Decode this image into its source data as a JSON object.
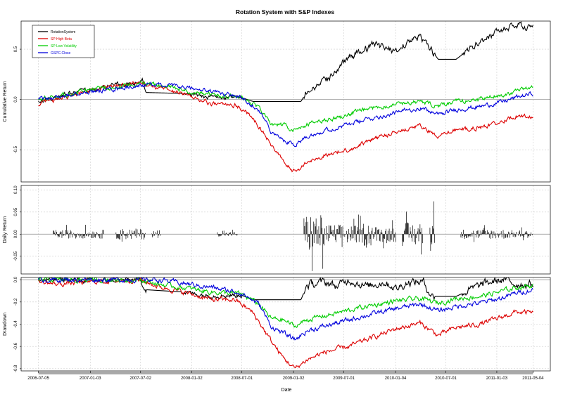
{
  "chart_data": {
    "type": "line",
    "title": "Rotation System with S&P Indexes",
    "xlabel": "Date",
    "x_tick_labels": [
      "2006-07-05",
      "2007-01-03",
      "2007-07-02",
      "2008-01-02",
      "2008-07-01",
      "2009-01-02",
      "2009-07-01",
      "2010-01-04",
      "2010-07-01",
      "2011-01-03",
      "2011-05-04"
    ],
    "x_tick_pos": [
      0,
      0.0869,
      0.1712,
      0.2568,
      0.341,
      0.4276,
      0.5119,
      0.5985,
      0.6828,
      0.7682,
      0.8289
    ],
    "x_range": [
      0,
      0.8289
    ],
    "colors": {
      "RotationSystem": "#000000",
      "SP High Beta": "#dd0000",
      "SP Low Volatility": "#00cc00",
      "GSPC.Close": "#0000dd"
    },
    "legend": [
      "RotationSystem",
      "SP High Beta",
      "SP Low Volatility",
      "GSPC.Close"
    ],
    "legend_position": "top-left",
    "panels": [
      {
        "ylabel": "Cumulative Return",
        "ylim": [
          -0.82,
          0.78
        ],
        "y_ticks": [
          0.5,
          0.0,
          -0.5
        ],
        "y_tick_labels": [
          "0.5",
          "0.0",
          "-0.5"
        ],
        "series": [
          {
            "name": "RotationSystem",
            "color": "#000000",
            "points": [
              [
                0,
                -0.02
              ],
              [
                0.02,
                0.0
              ],
              [
                0.05,
                0.06
              ],
              [
                0.08,
                0.09
              ],
              [
                0.1,
                0.11
              ],
              [
                0.12,
                0.13
              ],
              [
                0.14,
                0.16
              ],
              [
                0.16,
                0.17
              ],
              [
                0.175,
                0.19
              ],
              [
                0.18,
                0.07
              ],
              [
                0.24,
                0.06
              ],
              [
                0.28,
                0.02
              ],
              [
                0.34,
                0.02
              ],
              [
                0.36,
                -0.02
              ],
              [
                0.44,
                -0.02
              ],
              [
                0.45,
                0.08
              ],
              [
                0.48,
                0.18
              ],
              [
                0.5,
                0.3
              ],
              [
                0.52,
                0.42
              ],
              [
                0.55,
                0.5
              ],
              [
                0.56,
                0.55
              ],
              [
                0.6,
                0.48
              ],
              [
                0.62,
                0.58
              ],
              [
                0.64,
                0.62
              ],
              [
                0.65,
                0.56
              ],
              [
                0.67,
                0.4
              ],
              [
                0.7,
                0.4
              ],
              [
                0.74,
                0.58
              ],
              [
                0.78,
                0.7
              ],
              [
                0.8,
                0.74
              ],
              [
                0.829,
                0.71
              ]
            ]
          },
          {
            "name": "SP High Beta",
            "color": "#dd0000",
            "points": [
              [
                0,
                -0.05
              ],
              [
                0.03,
                0.0
              ],
              [
                0.08,
                0.08
              ],
              [
                0.12,
                0.13
              ],
              [
                0.17,
                0.17
              ],
              [
                0.2,
                0.12
              ],
              [
                0.25,
                0.05
              ],
              [
                0.29,
                -0.05
              ],
              [
                0.33,
                -0.05
              ],
              [
                0.36,
                -0.18
              ],
              [
                0.39,
                -0.45
              ],
              [
                0.41,
                -0.62
              ],
              [
                0.43,
                -0.72
              ],
              [
                0.45,
                -0.63
              ],
              [
                0.48,
                -0.55
              ],
              [
                0.52,
                -0.5
              ],
              [
                0.55,
                -0.42
              ],
              [
                0.58,
                -0.36
              ],
              [
                0.6,
                -0.32
              ],
              [
                0.64,
                -0.26
              ],
              [
                0.67,
                -0.38
              ],
              [
                0.7,
                -0.3
              ],
              [
                0.74,
                -0.28
              ],
              [
                0.78,
                -0.21
              ],
              [
                0.8,
                -0.16
              ],
              [
                0.829,
                -0.18
              ]
            ]
          },
          {
            "name": "SP Low Volatility",
            "color": "#00cc00",
            "points": [
              [
                0,
                0.0
              ],
              [
                0.04,
                0.04
              ],
              [
                0.08,
                0.09
              ],
              [
                0.12,
                0.12
              ],
              [
                0.17,
                0.16
              ],
              [
                0.2,
                0.14
              ],
              [
                0.24,
                0.1
              ],
              [
                0.29,
                0.05
              ],
              [
                0.34,
                0.03
              ],
              [
                0.37,
                -0.08
              ],
              [
                0.39,
                -0.25
              ],
              [
                0.41,
                -0.25
              ],
              [
                0.43,
                -0.32
              ],
              [
                0.45,
                -0.25
              ],
              [
                0.5,
                -0.18
              ],
              [
                0.55,
                -0.1
              ],
              [
                0.6,
                -0.04
              ],
              [
                0.64,
                -0.02
              ],
              [
                0.67,
                -0.07
              ],
              [
                0.7,
                -0.02
              ],
              [
                0.74,
                0.0
              ],
              [
                0.78,
                0.05
              ],
              [
                0.8,
                0.08
              ],
              [
                0.829,
                0.12
              ]
            ]
          },
          {
            "name": "GSPC.Close",
            "color": "#0000dd",
            "points": [
              [
                0,
                0.0
              ],
              [
                0.04,
                0.03
              ],
              [
                0.08,
                0.07
              ],
              [
                0.12,
                0.1
              ],
              [
                0.17,
                0.14
              ],
              [
                0.2,
                0.15
              ],
              [
                0.24,
                0.12
              ],
              [
                0.29,
                0.08
              ],
              [
                0.34,
                0.02
              ],
              [
                0.37,
                -0.1
              ],
              [
                0.39,
                -0.33
              ],
              [
                0.41,
                -0.4
              ],
              [
                0.43,
                -0.45
              ],
              [
                0.45,
                -0.36
              ],
              [
                0.5,
                -0.28
              ],
              [
                0.55,
                -0.2
              ],
              [
                0.6,
                -0.13
              ],
              [
                0.64,
                -0.08
              ],
              [
                0.67,
                -0.15
              ],
              [
                0.7,
                -0.1
              ],
              [
                0.74,
                -0.07
              ],
              [
                0.78,
                -0.02
              ],
              [
                0.8,
                0.02
              ],
              [
                0.829,
                0.06
              ]
            ]
          }
        ]
      },
      {
        "ylabel": "Daily Return",
        "ylim": [
          -0.09,
          0.11
        ],
        "y_ticks": [
          0.1,
          0.05,
          0.0,
          -0.05
        ],
        "y_tick_labels": [
          "0.10",
          "0.05",
          "0.00",
          "-0.05"
        ],
        "bar_segments": [
          [
            0.025,
            0.11,
            0.022
          ],
          [
            0.13,
            0.18,
            0.028
          ],
          [
            0.19,
            0.205,
            0.02
          ],
          [
            0.3,
            0.335,
            0.012
          ],
          [
            0.445,
            0.48,
            0.1
          ],
          [
            0.48,
            0.52,
            0.05
          ],
          [
            0.52,
            0.545,
            0.045
          ],
          [
            0.545,
            0.565,
            0.06
          ],
          [
            0.565,
            0.6,
            0.04
          ],
          [
            0.61,
            0.645,
            0.06
          ],
          [
            0.655,
            0.665,
            0.085
          ],
          [
            0.708,
            0.79,
            0.025
          ],
          [
            0.79,
            0.829,
            0.02
          ]
        ]
      },
      {
        "ylabel": "Drawdown",
        "ylim": [
          -0.82,
          0.02
        ],
        "y_ticks": [
          0.0,
          -0.2,
          -0.4,
          -0.6,
          -0.8
        ],
        "y_tick_labels": [
          "0.0",
          "-0.2",
          "-0.4",
          "-0.6",
          "-0.8"
        ],
        "series": [
          {
            "name": "RotationSystem",
            "color": "#000000",
            "points": [
              [
                0,
                0.0
              ],
              [
                0.05,
                0.0
              ],
              [
                0.1,
                -0.01
              ],
              [
                0.17,
                0.0
              ],
              [
                0.18,
                -0.09
              ],
              [
                0.24,
                -0.11
              ],
              [
                0.28,
                -0.14
              ],
              [
                0.34,
                -0.14
              ],
              [
                0.36,
                -0.18
              ],
              [
                0.44,
                -0.18
              ],
              [
                0.45,
                -0.05
              ],
              [
                0.48,
                -0.02
              ],
              [
                0.5,
                -0.06
              ],
              [
                0.52,
                0.0
              ],
              [
                0.55,
                -0.06
              ],
              [
                0.58,
                -0.02
              ],
              [
                0.6,
                -0.08
              ],
              [
                0.62,
                -0.02
              ],
              [
                0.645,
                -0.02
              ],
              [
                0.66,
                -0.15
              ],
              [
                0.7,
                -0.15
              ],
              [
                0.74,
                -0.05
              ],
              [
                0.76,
                -0.02
              ],
              [
                0.78,
                0.0
              ],
              [
                0.8,
                -0.04
              ],
              [
                0.829,
                -0.04
              ]
            ]
          },
          {
            "name": "SP High Beta",
            "color": "#dd0000",
            "points": [
              [
                0,
                -0.02
              ],
              [
                0.03,
                -0.04
              ],
              [
                0.08,
                -0.02
              ],
              [
                0.17,
                0.0
              ],
              [
                0.2,
                -0.06
              ],
              [
                0.25,
                -0.12
              ],
              [
                0.29,
                -0.18
              ],
              [
                0.33,
                -0.18
              ],
              [
                0.36,
                -0.3
              ],
              [
                0.39,
                -0.55
              ],
              [
                0.41,
                -0.7
              ],
              [
                0.43,
                -0.8
              ],
              [
                0.45,
                -0.72
              ],
              [
                0.48,
                -0.65
              ],
              [
                0.52,
                -0.6
              ],
              [
                0.55,
                -0.54
              ],
              [
                0.58,
                -0.48
              ],
              [
                0.6,
                -0.44
              ],
              [
                0.64,
                -0.39
              ],
              [
                0.67,
                -0.5
              ],
              [
                0.7,
                -0.43
              ],
              [
                0.74,
                -0.4
              ],
              [
                0.78,
                -0.33
              ],
              [
                0.8,
                -0.29
              ],
              [
                0.829,
                -0.3
              ]
            ]
          },
          {
            "name": "SP Low Volatility",
            "color": "#00cc00",
            "points": [
              [
                0,
                0.0
              ],
              [
                0.08,
                0.0
              ],
              [
                0.17,
                0.0
              ],
              [
                0.2,
                -0.04
              ],
              [
                0.24,
                -0.07
              ],
              [
                0.29,
                -0.11
              ],
              [
                0.34,
                -0.13
              ],
              [
                0.37,
                -0.22
              ],
              [
                0.39,
                -0.35
              ],
              [
                0.41,
                -0.36
              ],
              [
                0.43,
                -0.42
              ],
              [
                0.45,
                -0.36
              ],
              [
                0.5,
                -0.3
              ],
              [
                0.55,
                -0.24
              ],
              [
                0.6,
                -0.19
              ],
              [
                0.64,
                -0.17
              ],
              [
                0.67,
                -0.21
              ],
              [
                0.7,
                -0.17
              ],
              [
                0.74,
                -0.15
              ],
              [
                0.78,
                -0.1
              ],
              [
                0.8,
                -0.07
              ],
              [
                0.829,
                -0.05
              ]
            ]
          },
          {
            "name": "GSPC.Close",
            "color": "#0000dd",
            "points": [
              [
                0,
                0.0
              ],
              [
                0.08,
                0.0
              ],
              [
                0.17,
                0.0
              ],
              [
                0.2,
                0.0
              ],
              [
                0.24,
                -0.03
              ],
              [
                0.29,
                -0.07
              ],
              [
                0.34,
                -0.12
              ],
              [
                0.37,
                -0.22
              ],
              [
                0.39,
                -0.42
              ],
              [
                0.41,
                -0.48
              ],
              [
                0.43,
                -0.54
              ],
              [
                0.45,
                -0.46
              ],
              [
                0.5,
                -0.39
              ],
              [
                0.55,
                -0.32
              ],
              [
                0.6,
                -0.26
              ],
              [
                0.64,
                -0.22
              ],
              [
                0.67,
                -0.28
              ],
              [
                0.7,
                -0.24
              ],
              [
                0.74,
                -0.21
              ],
              [
                0.78,
                -0.16
              ],
              [
                0.8,
                -0.12
              ],
              [
                0.829,
                -0.09
              ]
            ]
          }
        ]
      }
    ]
  }
}
